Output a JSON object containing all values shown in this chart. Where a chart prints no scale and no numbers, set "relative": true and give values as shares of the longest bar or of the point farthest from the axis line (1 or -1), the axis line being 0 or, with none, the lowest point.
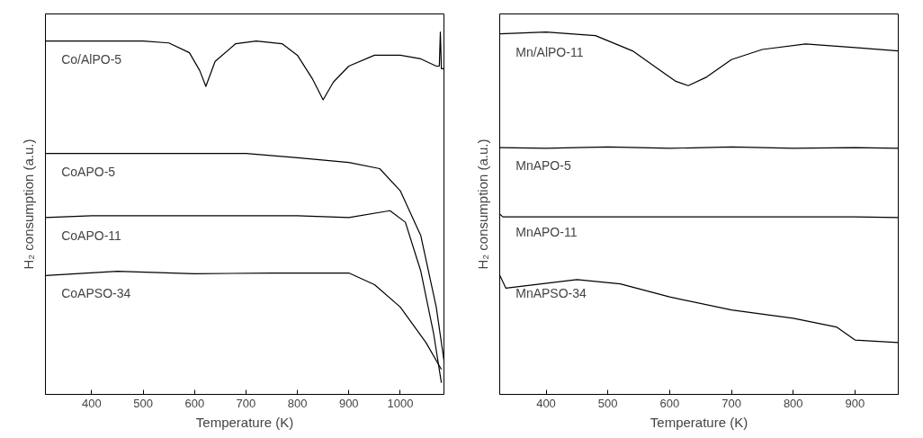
{
  "chart_data": [
    {
      "type": "line",
      "relative": true,
      "xlabel": "Temperature (K)",
      "ylabel": "H₂ consumption (a.u.)",
      "xlim": [
        310,
        1085
      ],
      "xticks": [
        400,
        500,
        600,
        700,
        800,
        900,
        1000
      ],
      "grid": false,
      "tick_labels": "x",
      "series": [
        {
          "name": "Co/AlPO-5",
          "color": "#000000",
          "x": [
            310,
            400,
            500,
            550,
            590,
            610,
            622,
            640,
            680,
            720,
            770,
            800,
            830,
            850,
            870,
            900,
            950,
            1000,
            1040,
            1070,
            1076,
            1078,
            1080,
            1085
          ],
          "values": [
            0.975,
            0.975,
            0.975,
            0.97,
            0.943,
            0.894,
            0.85,
            0.919,
            0.968,
            0.975,
            0.968,
            0.936,
            0.869,
            0.813,
            0.862,
            0.906,
            0.936,
            0.936,
            0.926,
            0.906,
            0.906,
            1.0,
            0.899,
            0.899
          ]
        },
        {
          "name": "CoAPO-5",
          "color": "#000000",
          "x": [
            310,
            400,
            500,
            600,
            700,
            800,
            900,
            960,
            1000,
            1040,
            1070,
            1085
          ],
          "values": [
            0.665,
            0.665,
            0.665,
            0.665,
            0.665,
            0.653,
            0.64,
            0.623,
            0.562,
            0.438,
            0.241,
            0.094
          ]
        },
        {
          "name": "CoAPO-11",
          "color": "#000000",
          "x": [
            310,
            400,
            500,
            600,
            700,
            800,
            900,
            980,
            1010,
            1040,
            1065,
            1080
          ],
          "values": [
            0.488,
            0.493,
            0.493,
            0.493,
            0.493,
            0.493,
            0.488,
            0.507,
            0.475,
            0.34,
            0.167,
            0.032
          ]
        },
        {
          "name": "CoAPSO-34",
          "color": "#000000",
          "x": [
            310,
            450,
            600,
            750,
            900,
            950,
            1000,
            1050,
            1080
          ],
          "values": [
            0.328,
            0.34,
            0.333,
            0.335,
            0.335,
            0.303,
            0.241,
            0.143,
            0.069
          ]
        }
      ]
    },
    {
      "type": "line",
      "relative": true,
      "xlabel": "Temperature (K)",
      "ylabel": "H₂ consumption (a.u.)",
      "xlim": [
        325,
        970
      ],
      "xticks": [
        400,
        500,
        600,
        700,
        800,
        900
      ],
      "grid": false,
      "tick_labels": "x",
      "series": [
        {
          "name": "Mn/AlPO-11",
          "color": "#000000",
          "x": [
            325,
            400,
            480,
            540,
            580,
            610,
            630,
            660,
            700,
            750,
            820,
            900,
            970
          ],
          "values": [
            0.995,
            1.0,
            0.99,
            0.948,
            0.9,
            0.864,
            0.852,
            0.876,
            0.924,
            0.952,
            0.967,
            0.957,
            0.948
          ]
        },
        {
          "name": "MnAPO-5",
          "color": "#000000",
          "x": [
            325,
            400,
            500,
            600,
            700,
            800,
            900,
            970
          ],
          "values": [
            0.681,
            0.679,
            0.683,
            0.679,
            0.683,
            0.679,
            0.681,
            0.679
          ]
        },
        {
          "name": "MnAPO-11",
          "color": "#000000",
          "x": [
            325,
            330,
            400,
            500,
            600,
            700,
            800,
            900,
            970
          ],
          "values": [
            0.498,
            0.49,
            0.49,
            0.49,
            0.49,
            0.49,
            0.49,
            0.49,
            0.488
          ]
        },
        {
          "name": "MnAPSO-34",
          "color": "#000000",
          "x": [
            325,
            335,
            450,
            520,
            600,
            700,
            800,
            870,
            900,
            970
          ],
          "values": [
            0.329,
            0.293,
            0.317,
            0.305,
            0.269,
            0.233,
            0.21,
            0.186,
            0.15,
            0.143
          ]
        }
      ]
    }
  ]
}
